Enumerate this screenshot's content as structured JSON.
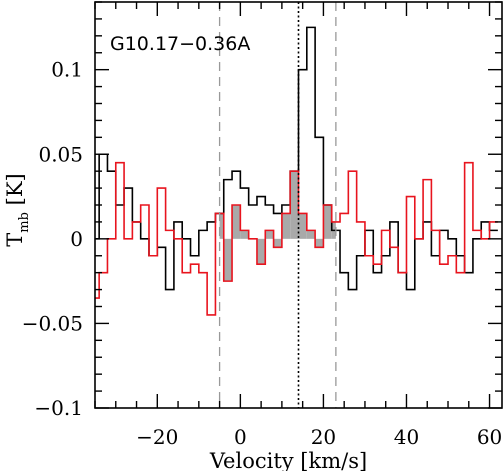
{
  "chart_data": {
    "type": "line",
    "style": "step",
    "title": "",
    "annotation": "G10.17−0.36A",
    "xlabel": "Velocity [km/s]",
    "ylabel_main": "T",
    "ylabel_sub": "mb",
    "ylabel_unit": " [K]",
    "xlim": [
      -35,
      63
    ],
    "ylim": [
      -0.1,
      0.14
    ],
    "x_ticks": [
      -20,
      0,
      20,
      40,
      60
    ],
    "x_tick_labels": [
      "−20",
      "0",
      "20",
      "40",
      "60"
    ],
    "y_ticks": [
      -0.1,
      -0.05,
      0,
      0.05,
      0.1
    ],
    "y_tick_labels": [
      "−0.1",
      "−0.05",
      "0",
      "0.05",
      "0.1"
    ],
    "x_minor_step": 5,
    "y_minor_step": 0.01,
    "grid": false,
    "legend": "none",
    "vlines": [
      {
        "x": -5,
        "style": "dashed",
        "color": "#999999"
      },
      {
        "x": 14,
        "style": "dotted",
        "color": "#000000"
      },
      {
        "x": 23,
        "style": "dashed",
        "color": "#999999"
      }
    ],
    "fill_range": [
      -5,
      23
    ],
    "colors": {
      "series_black": "#000000",
      "series_red": "#e8141e",
      "fill": "#a9a9a9",
      "vline_dashed": "#999999"
    },
    "series": [
      {
        "color": "#000000",
        "x": [
          -35,
          -33,
          -31,
          -29,
          -27,
          -25,
          -23,
          -21,
          -19,
          -17,
          -15,
          -13,
          -11,
          -9,
          -7,
          -5,
          -3,
          -1,
          1,
          3,
          5,
          7,
          9,
          11,
          13,
          15,
          17,
          19,
          21,
          23,
          25,
          27,
          29,
          31,
          33,
          35,
          37,
          39,
          41,
          43,
          45,
          47,
          49,
          51,
          53,
          55,
          57,
          59,
          61
        ],
        "y": [
          0.0,
          0.05,
          0.04,
          0.02,
          0.03,
          0.01,
          0.0,
          -0.01,
          -0.005,
          -0.03,
          0.01,
          0.0,
          -0.01,
          0.005,
          0.01,
          0.015,
          0.035,
          0.04,
          0.03,
          0.02,
          0.025,
          0.02,
          0.015,
          0.02,
          0.04,
          0.1,
          0.125,
          0.06,
          0.02,
          0.005,
          -0.02,
          -0.03,
          -0.01,
          0.005,
          -0.02,
          -0.01,
          0.01,
          -0.02,
          -0.03,
          0.0,
          0.01,
          -0.01,
          0.005,
          0.0,
          -0.01,
          -0.02,
          0.0,
          0.01,
          0.005
        ]
      },
      {
        "color": "#e8141e",
        "x": [
          -35,
          -33,
          -31,
          -29,
          -27,
          -25,
          -23,
          -21,
          -19,
          -17,
          -15,
          -13,
          -11,
          -9,
          -7,
          -5,
          -3,
          -1,
          1,
          3,
          5,
          7,
          9,
          11,
          13,
          15,
          17,
          19,
          21,
          23,
          25,
          27,
          29,
          31,
          33,
          35,
          37,
          39,
          41,
          43,
          45,
          47,
          49,
          51,
          53,
          55,
          57,
          59,
          61
        ],
        "y": [
          -0.035,
          -0.02,
          0.0,
          0.045,
          0.0,
          0.01,
          0.02,
          -0.01,
          0.03,
          0.005,
          0.0,
          -0.02,
          -0.015,
          -0.02,
          -0.045,
          0.015,
          -0.025,
          0.02,
          0.005,
          0.0,
          -0.015,
          0.005,
          -0.005,
          0.015,
          0.04,
          0.015,
          0.005,
          -0.005,
          0.02,
          0.01,
          0.015,
          0.04,
          0.01,
          -0.01,
          -0.015,
          0.005,
          -0.005,
          -0.02,
          0.025,
          0.0,
          0.035,
          0.005,
          -0.015,
          -0.01,
          -0.02,
          0.045,
          0.005,
          0.0,
          0.01
        ]
      }
    ]
  }
}
